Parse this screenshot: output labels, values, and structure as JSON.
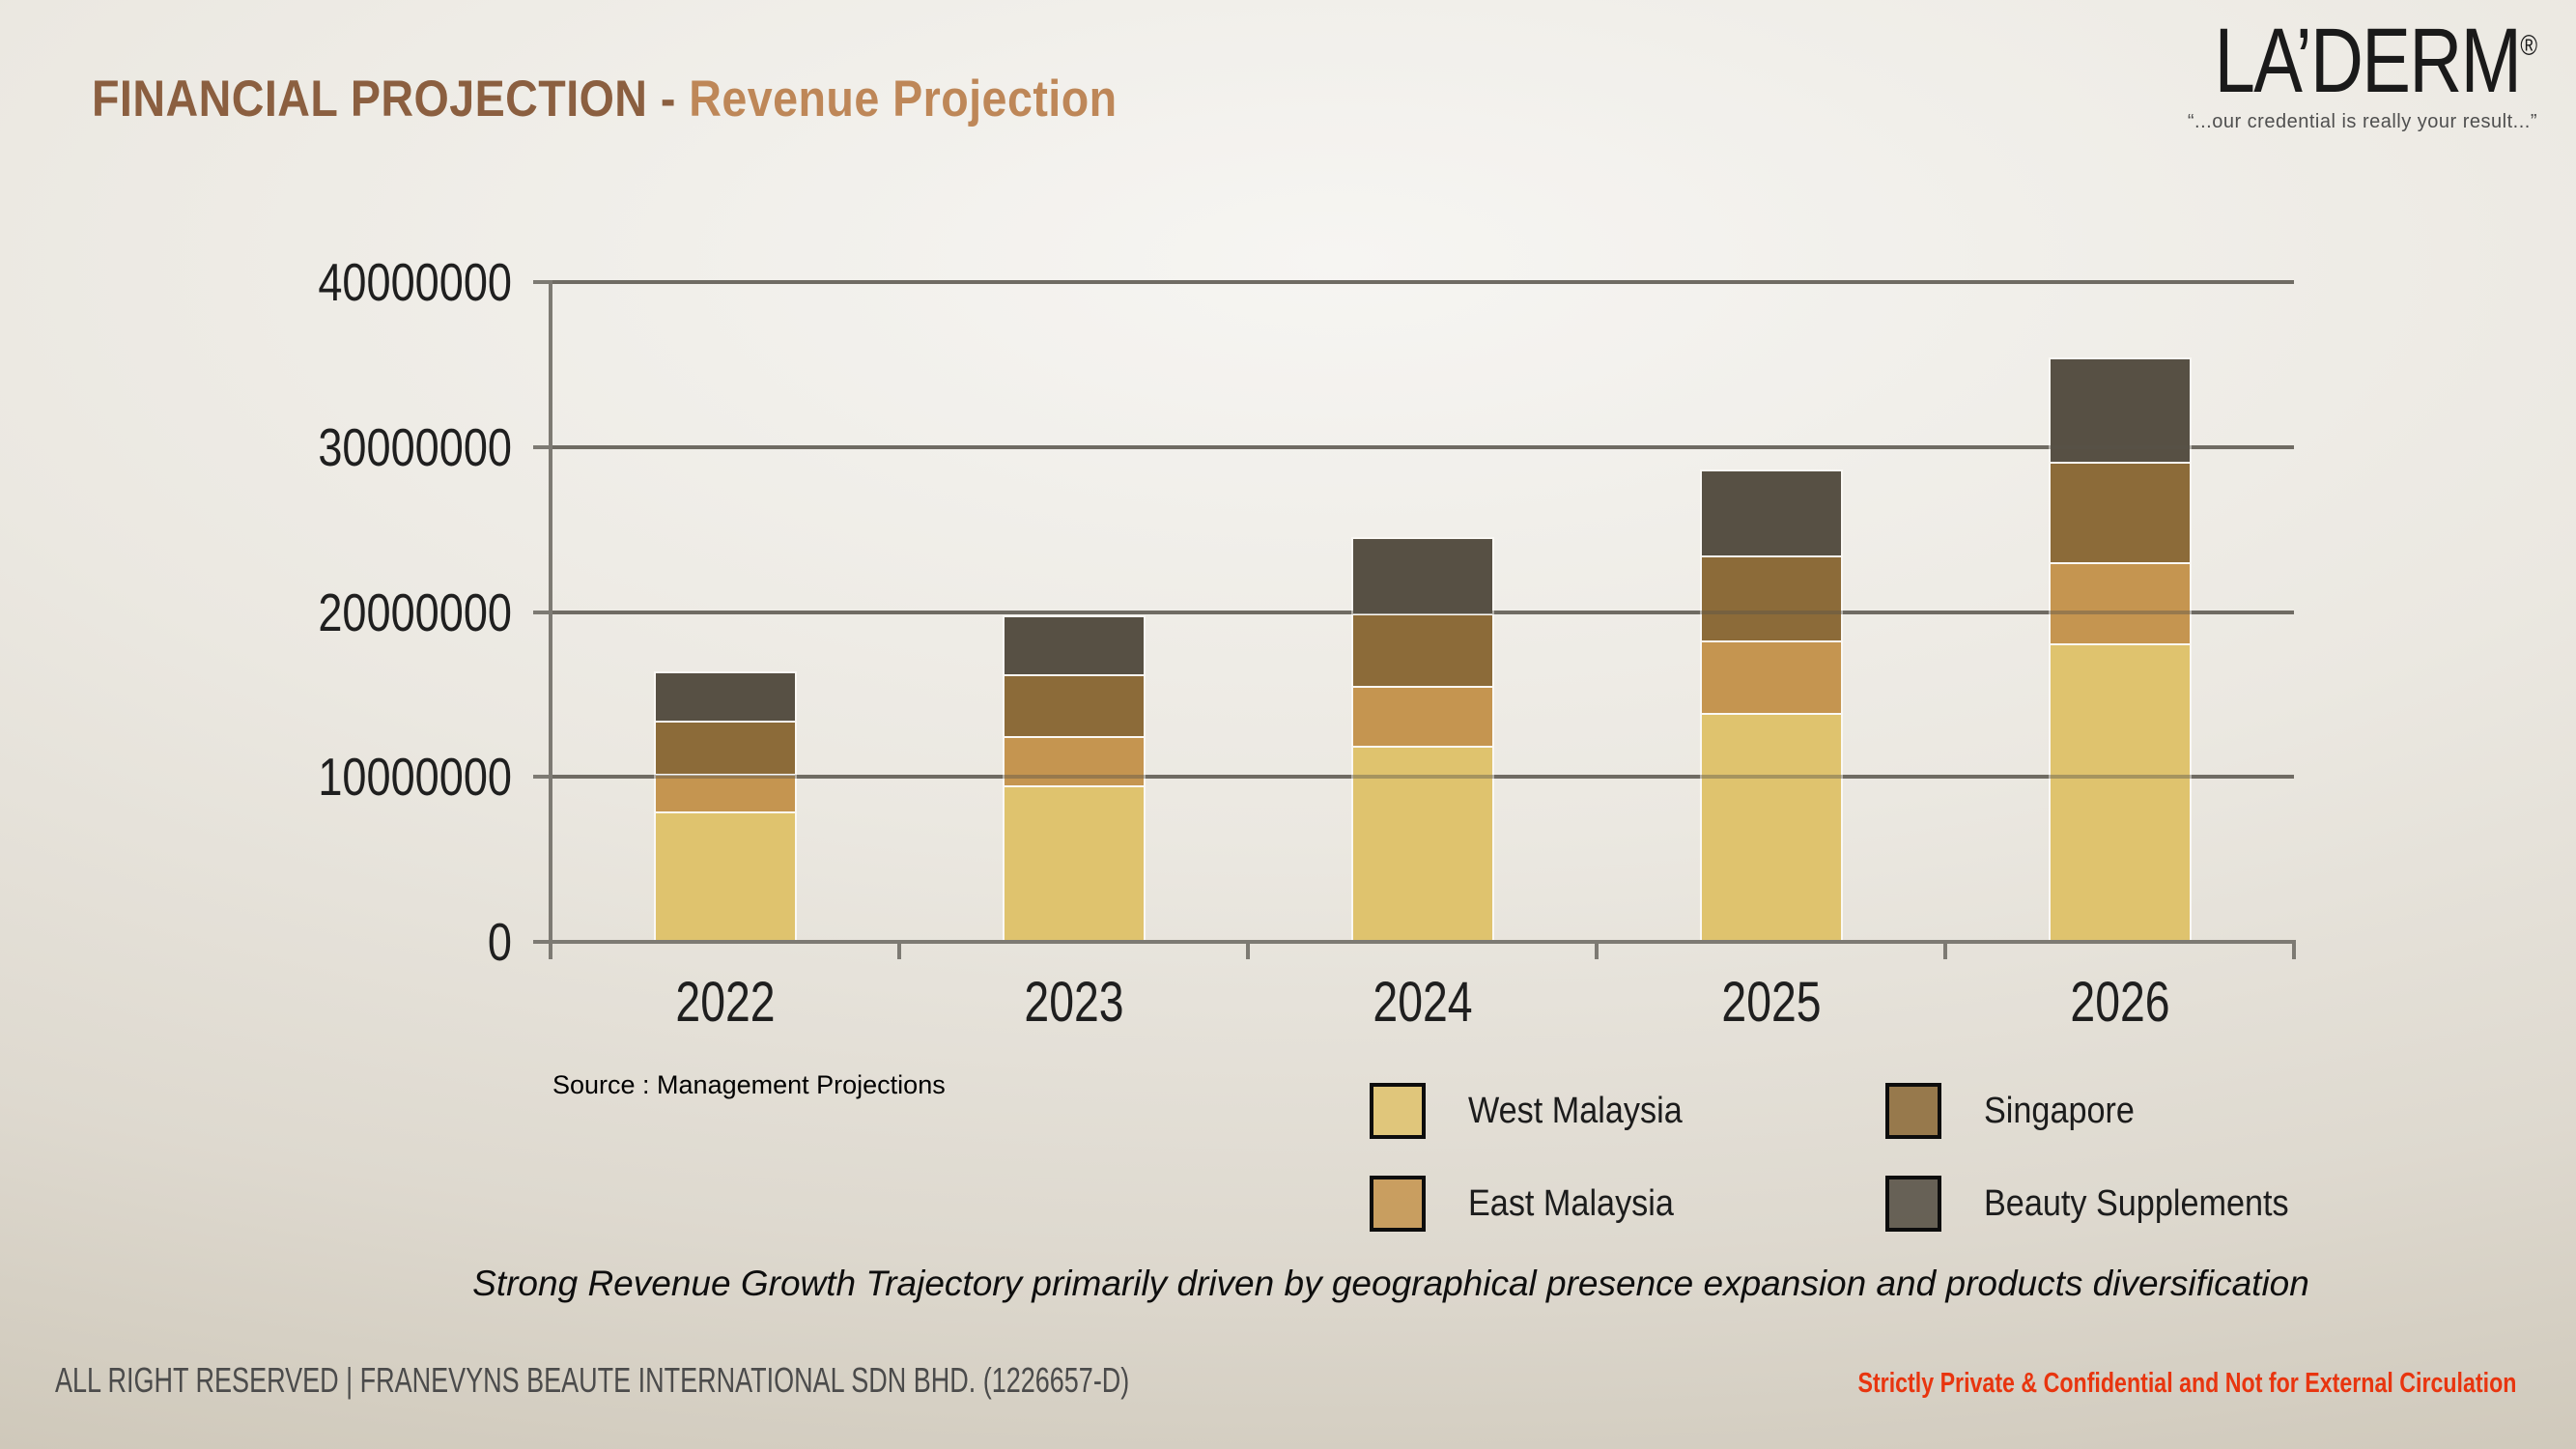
{
  "header": {
    "title_main": "FINANCIAL PROJECTION - ",
    "title_sub": "Revenue Projection"
  },
  "logo": {
    "name": "LA’DERM",
    "registered": "®",
    "tagline": "“...our credential is really your result...”"
  },
  "chart_data": {
    "type": "bar",
    "stacked": true,
    "categories": [
      "2022",
      "2023",
      "2024",
      "2025",
      "2026"
    ],
    "series": [
      {
        "name": "West Malaysia",
        "color": "#DFC36E",
        "values": [
          7900000,
          9500000,
          11900000,
          13900000,
          18100000
        ]
      },
      {
        "name": "East Malaysia",
        "color": "#C59550",
        "values": [
          2300000,
          3000000,
          3600000,
          4400000,
          4900000
        ]
      },
      {
        "name": "Singapore",
        "color": "#8C6B39",
        "values": [
          3200000,
          3700000,
          4400000,
          5100000,
          6100000
        ]
      },
      {
        "name": "Beauty Supplements",
        "color": "#575044",
        "values": [
          2900000,
          3500000,
          4500000,
          5100000,
          6200000
        ]
      }
    ],
    "ylim": [
      0,
      40000000
    ],
    "y_ticks": [
      0,
      10000000,
      20000000,
      30000000,
      40000000
    ],
    "grid": true,
    "legend_position": "bottom-right",
    "xlabel": "",
    "ylabel": ""
  },
  "source_note": "Source : Management Projections",
  "caption": "Strong Revenue Growth Trajectory primarily driven by geographical presence expansion and products diversification",
  "footer": {
    "left": "ALL RIGHT RESERVED | FRANEVYNS BEAUTE INTERNATIONAL SDN BHD. (1226657-D)",
    "right": "Strictly Private & Confidential and Not for External Circulation"
  },
  "colors": {
    "title_main": "#8B5F40",
    "title_sub": "#BE8758",
    "footer_right": "#E8350F",
    "axis": "#7D7A73",
    "text": "#1f1f1f"
  }
}
